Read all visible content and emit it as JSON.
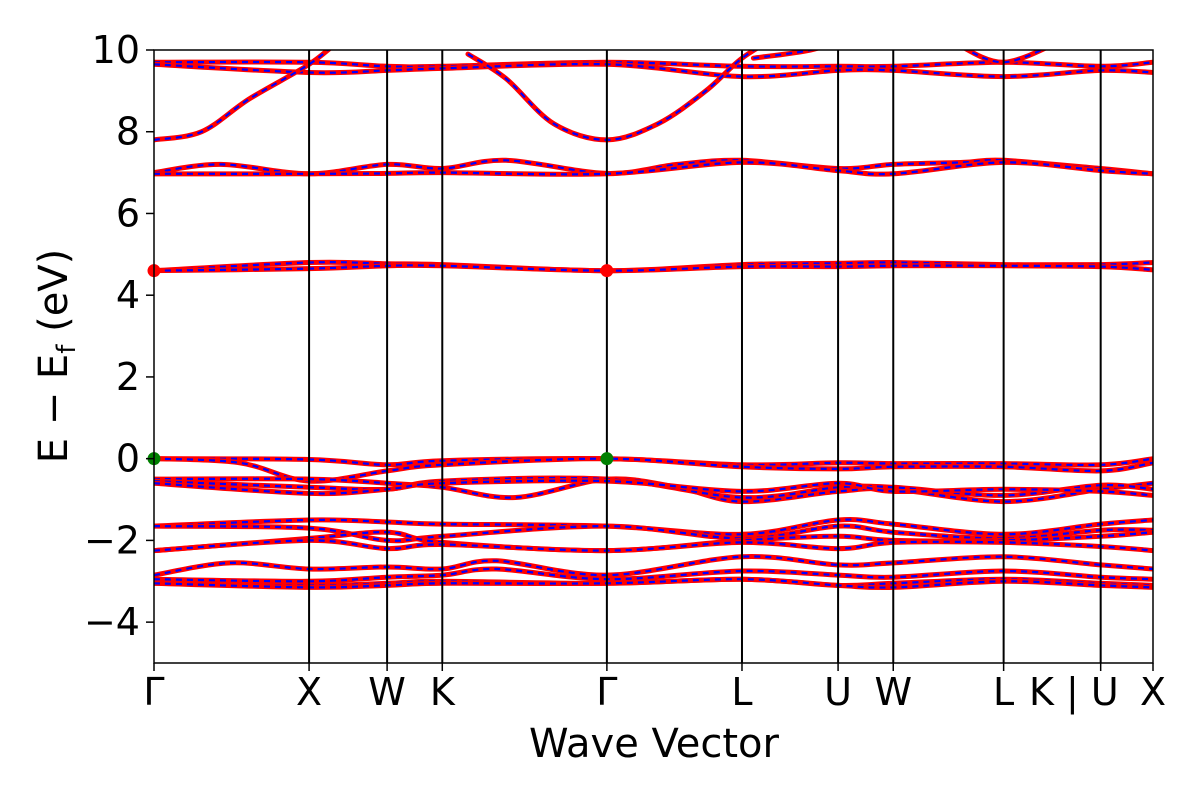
{
  "chart_data": {
    "type": "line",
    "title": "",
    "xlabel": "Wave Vector",
    "ylabel": "E − E",
    "ylabel_sub": "f",
    "ylabel_unit": " (eV)",
    "ylim": [
      -5,
      10
    ],
    "y_ticks": [
      {
        "value": -4,
        "label": "−4"
      },
      {
        "value": -2,
        "label": "−2"
      },
      {
        "value": 0,
        "label": "0"
      },
      {
        "value": 2,
        "label": "2"
      },
      {
        "value": 4,
        "label": "4"
      },
      {
        "value": 6,
        "label": "6"
      },
      {
        "value": 8,
        "label": "8"
      },
      {
        "value": 10,
        "label": "10"
      }
    ],
    "x_range": [
      0,
      10.5
    ],
    "k_points": [
      {
        "label": "Γ",
        "x": 0.0
      },
      {
        "label": "X",
        "x": 1.63
      },
      {
        "label": "W",
        "x": 2.45
      },
      {
        "label": "K",
        "x": 3.03
      },
      {
        "label": "Γ",
        "x": 4.76
      },
      {
        "label": "L",
        "x": 6.18
      },
      {
        "label": "U",
        "x": 7.19
      },
      {
        "label": "W",
        "x": 7.77
      },
      {
        "label": "L",
        "x": 8.93
      },
      {
        "label": "K | U",
        "x": 9.95
      },
      {
        "label": "X",
        "x": 10.5
      }
    ],
    "line_style": {
      "outer_color": "#ff0000",
      "inner_color": "#0000ff",
      "inner_dash": "dashed"
    },
    "extrema_markers": [
      {
        "x": 0.0,
        "y": 4.6,
        "color": "#ff0000",
        "kind": "CBM"
      },
      {
        "x": 4.76,
        "y": 4.6,
        "color": "#ff0000",
        "kind": "CBM"
      },
      {
        "x": 0.0,
        "y": 0.0,
        "color": "#008000",
        "kind": "VBM"
      },
      {
        "x": 4.76,
        "y": 0.0,
        "color": "#008000",
        "kind": "VBM"
      }
    ],
    "series": [
      {
        "x": [
          0,
          1.63,
          2.45,
          3.03,
          4.76,
          6.18,
          7.19,
          7.77,
          8.93,
          9.95,
          10.5
        ],
        "y": [
          9.7,
          9.7,
          9.6,
          9.6,
          9.7,
          9.6,
          9.6,
          9.6,
          9.7,
          9.6,
          9.7
        ]
      },
      {
        "x": [
          0,
          1.63,
          2.45,
          3.03,
          4.76,
          6.18,
          7.19,
          7.77,
          8.93,
          9.95,
          10.5
        ],
        "y": [
          9.65,
          9.45,
          9.5,
          9.55,
          9.65,
          9.35,
          9.5,
          9.5,
          9.35,
          9.5,
          9.45
        ]
      },
      {
        "x": [
          0,
          0.5,
          1.0,
          1.63,
          2.0,
          2.45
        ],
        "y": [
          7.8,
          8.0,
          8.8,
          9.65,
          10.3,
          10.8
        ]
      },
      {
        "x": [
          3.3,
          3.7,
          4.2,
          4.76,
          5.3,
          5.8,
          6.18,
          6.6
        ],
        "y": [
          9.9,
          9.3,
          8.2,
          7.8,
          8.2,
          9.0,
          9.8,
          10.4
        ]
      },
      {
        "x": [
          0,
          0.7,
          1.63,
          2.45,
          3.03,
          3.7,
          4.76,
          5.5,
          6.18,
          7.19,
          7.77,
          8.5,
          8.93,
          9.95,
          10.5
        ],
        "y": [
          7.0,
          7.2,
          6.97,
          7.2,
          7.1,
          7.3,
          6.98,
          7.2,
          7.3,
          7.1,
          7.2,
          7.25,
          7.3,
          7.1,
          6.97
        ]
      },
      {
        "x": [
          0,
          1.63,
          2.45,
          3.03,
          4.76,
          6.18,
          7.19,
          7.77,
          8.93,
          9.95,
          10.5
        ],
        "y": [
          6.97,
          6.97,
          6.98,
          7.0,
          6.97,
          7.25,
          7.05,
          6.97,
          7.25,
          7.05,
          6.97
        ]
      },
      {
        "x": [
          0,
          1.63,
          2.45,
          3.03,
          4.76,
          6.18,
          7.19,
          7.77,
          8.93,
          9.95,
          10.5
        ],
        "y": [
          4.6,
          4.8,
          4.77,
          4.75,
          4.6,
          4.75,
          4.78,
          4.8,
          4.75,
          4.75,
          4.8
        ]
      },
      {
        "x": [
          0,
          1.63,
          2.45,
          3.03,
          4.76,
          6.18,
          7.19,
          7.77,
          8.93,
          9.95,
          10.5
        ],
        "y": [
          4.6,
          4.65,
          4.72,
          4.72,
          4.6,
          4.7,
          4.7,
          4.72,
          4.72,
          4.7,
          4.62
        ]
      },
      {
        "x": [
          0,
          1.63,
          2.45,
          3.03,
          4.76,
          6.18,
          7.19,
          7.77,
          8.93,
          9.95,
          10.5
        ],
        "y": [
          0.0,
          -0.02,
          -0.15,
          -0.05,
          0.0,
          -0.15,
          -0.1,
          -0.12,
          -0.12,
          -0.15,
          0.0
        ]
      },
      {
        "x": [
          0,
          0.9,
          1.63,
          2.45,
          3.03,
          4.76,
          6.18,
          7.19,
          7.77,
          8.93,
          9.95,
          10.5
        ],
        "y": [
          0.0,
          -0.1,
          -0.55,
          -0.3,
          -0.15,
          0.0,
          -0.2,
          -0.25,
          -0.2,
          -0.2,
          -0.3,
          -0.1
        ]
      },
      {
        "x": [
          0,
          1.63,
          2.45,
          3.03,
          3.8,
          4.76,
          5.5,
          6.18,
          7.19,
          7.77,
          8.93,
          9.95,
          10.5
        ],
        "y": [
          -0.5,
          -0.5,
          -0.6,
          -0.7,
          -0.95,
          -0.5,
          -0.7,
          -1.05,
          -0.8,
          -0.75,
          -1.05,
          -0.75,
          -0.6
        ]
      },
      {
        "x": [
          0,
          1.63,
          2.45,
          3.03,
          4.76,
          6.18,
          7.19,
          7.77,
          8.93,
          9.95,
          10.5
        ],
        "y": [
          -0.55,
          -0.7,
          -0.75,
          -0.55,
          -0.5,
          -0.95,
          -0.7,
          -0.7,
          -0.9,
          -0.65,
          -0.75
        ]
      },
      {
        "x": [
          0,
          1.63,
          2.45,
          3.03,
          4.76,
          6.18,
          7.19,
          7.77,
          8.93,
          9.95,
          10.5
        ],
        "y": [
          -0.6,
          -0.85,
          -0.75,
          -0.6,
          -0.55,
          -0.8,
          -0.6,
          -0.8,
          -0.75,
          -0.8,
          -0.9
        ]
      },
      {
        "x": [
          0,
          1.63,
          2.45,
          3.03,
          4.76,
          6.18,
          7.19,
          7.77,
          8.93,
          9.95,
          10.5
        ],
        "y": [
          -1.65,
          -1.5,
          -1.55,
          -1.6,
          -1.65,
          -1.85,
          -1.5,
          -1.6,
          -1.85,
          -1.6,
          -1.5
        ]
      },
      {
        "x": [
          0,
          1.63,
          2.45,
          3.03,
          4.76,
          6.18,
          7.19,
          7.77,
          8.93,
          9.95,
          10.5
        ],
        "y": [
          -1.65,
          -1.7,
          -2.0,
          -1.9,
          -1.65,
          -1.95,
          -1.65,
          -1.8,
          -1.95,
          -1.75,
          -1.75
        ]
      },
      {
        "x": [
          0,
          1.63,
          2.45,
          3.03,
          4.76,
          6.18,
          7.19,
          7.77,
          8.93,
          9.95,
          10.5
        ],
        "y": [
          -2.25,
          -1.95,
          -1.8,
          -2.05,
          -2.25,
          -2.0,
          -1.9,
          -2.0,
          -2.0,
          -1.9,
          -1.8
        ]
      },
      {
        "x": [
          0,
          1.63,
          2.45,
          3.03,
          4.76,
          6.18,
          7.19,
          7.77,
          8.93,
          9.95,
          10.5
        ],
        "y": [
          -2.25,
          -2.0,
          -2.2,
          -2.1,
          -2.25,
          -2.05,
          -2.2,
          -2.05,
          -2.05,
          -2.15,
          -2.25
        ]
      },
      {
        "x": [
          0,
          0.8,
          1.63,
          2.45,
          3.03,
          3.6,
          4.76,
          6.18,
          7.19,
          7.77,
          8.93,
          9.95,
          10.5
        ],
        "y": [
          -2.85,
          -2.55,
          -2.7,
          -2.65,
          -2.7,
          -2.5,
          -2.85,
          -2.4,
          -2.6,
          -2.55,
          -2.4,
          -2.6,
          -2.7
        ]
      },
      {
        "x": [
          0,
          1.63,
          2.45,
          3.03,
          3.6,
          4.76,
          6.18,
          7.19,
          7.77,
          8.93,
          9.95,
          10.5
        ],
        "y": [
          -2.95,
          -3.0,
          -2.9,
          -2.85,
          -2.7,
          -2.95,
          -2.75,
          -2.85,
          -2.9,
          -2.75,
          -2.9,
          -2.95
        ]
      },
      {
        "x": [
          0,
          1.63,
          2.45,
          3.03,
          4.76,
          6.18,
          7.19,
          7.77,
          8.93,
          9.95,
          10.5
        ],
        "y": [
          -3.05,
          -3.1,
          -3.05,
          -3.0,
          -3.05,
          -2.95,
          -3.1,
          -3.05,
          -2.95,
          -3.05,
          -3.1
        ]
      },
      {
        "x": [
          0,
          1.63,
          2.45,
          3.03,
          4.76,
          6.18,
          7.19,
          7.77,
          8.93,
          9.95,
          10.5
        ],
        "y": [
          -3.05,
          -3.15,
          -3.1,
          -3.05,
          -3.05,
          -2.95,
          -3.1,
          -3.15,
          -3.0,
          -3.1,
          -3.15
        ]
      },
      {
        "x": [
          8.4,
          8.93,
          9.6
        ],
        "y": [
          10.2,
          9.7,
          10.3
        ]
      },
      {
        "x": [
          6.3,
          6.9,
          7.3
        ],
        "y": [
          9.8,
          10.0,
          10.3
        ]
      }
    ]
  }
}
